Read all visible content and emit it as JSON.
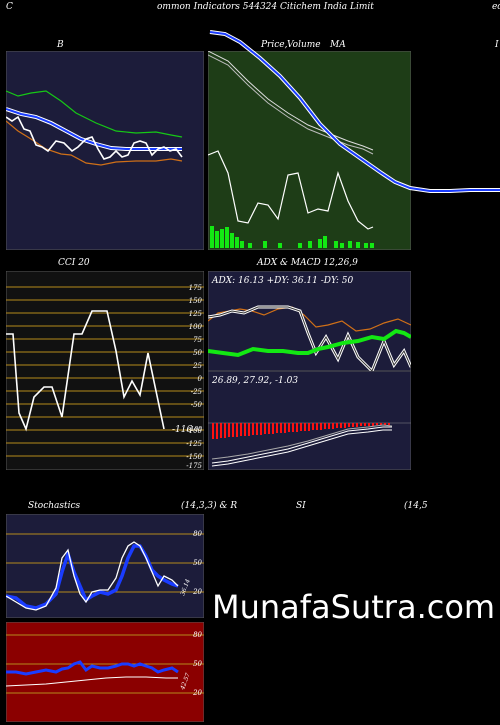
{
  "header": {
    "left_char": "C",
    "title": "ommon  Indicators 544324  Citichem India  Limit",
    "right_text": "ed"
  },
  "bollinger": {
    "label": "B"
  },
  "price_panel": {
    "label_price": "Price,",
    "label_ma": "MA",
    "label_overlap": "Volume"
  },
  "far_right_char": "I",
  "cci": {
    "label": "CCI 20",
    "value": "-116",
    "ticks": [
      "175",
      "150",
      "125",
      "100",
      "75",
      "50",
      "25",
      "0",
      "-25",
      "-50",
      "-75",
      "-100",
      "-125",
      "-150",
      "-175"
    ]
  },
  "adx": {
    "label": "ADX  & MACD 12,26,9",
    "readout": "ADX: 16.13  +DY: 36.11  -DY: 50"
  },
  "macd": {
    "readout": "26.89,  27.92,  -1.03"
  },
  "stochastics": {
    "label_left": "Stochastics",
    "label_mid": "(14,3,3) & R",
    "label_rsi": "SI",
    "label_right": "(14,5",
    "ticks": [
      "80",
      "50",
      "20"
    ],
    "value": "36.14"
  },
  "rsi": {
    "ticks": [
      "80",
      "50",
      "20"
    ],
    "value": "42.57"
  },
  "brand": "MunafaSutra.com",
  "colors": {
    "navy": "#1c1c3a",
    "green_bg": "#1e3d17",
    "cci_bg": "#111111",
    "red_bg": "#8b0000",
    "orange": "#d07018",
    "blue": "#1a3cff",
    "green_line": "#13e813"
  }
}
